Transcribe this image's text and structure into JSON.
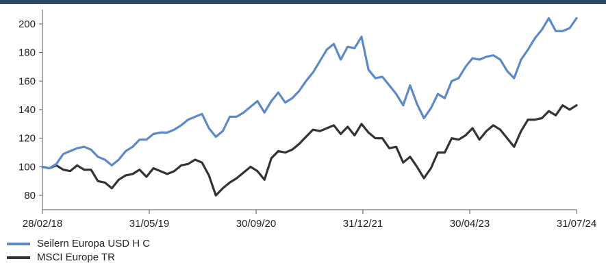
{
  "chart_data": {
    "type": "line",
    "x_ticks": [
      "28/02/18",
      "31/05/19",
      "30/09/20",
      "31/12/21",
      "30/04/23",
      "31/07/24"
    ],
    "y_ticks": [
      80,
      100,
      120,
      140,
      160,
      180,
      200
    ],
    "ylim": [
      70,
      210
    ],
    "grid": false,
    "legend_position": "bottom-left",
    "series": [
      {
        "name": "Seilern Europa USD H C",
        "color": "#5b8ac6",
        "values": [
          100,
          99,
          102,
          109,
          111,
          113,
          114,
          112,
          107,
          105,
          101,
          105,
          111,
          114,
          119,
          119,
          123,
          124,
          124,
          126,
          129,
          133,
          135,
          137,
          127,
          121,
          125,
          135,
          135,
          138,
          142,
          146,
          138,
          146,
          152,
          145,
          148,
          153,
          160,
          166,
          174,
          182,
          186,
          175,
          184,
          183,
          191,
          168,
          162,
          163,
          157,
          151,
          143,
          157,
          144,
          134,
          141,
          151,
          148,
          160,
          162,
          170,
          176,
          175,
          177,
          178,
          175,
          167,
          162,
          175,
          182,
          190,
          196,
          204,
          195,
          195,
          197,
          204
        ]
      },
      {
        "name": "MSCI Europe TR",
        "color": "#333333",
        "values": [
          100,
          99,
          101,
          98,
          97,
          101,
          98,
          98,
          90,
          89,
          85,
          91,
          94,
          95,
          98,
          93,
          99,
          97,
          95,
          97,
          101,
          102,
          105,
          103,
          94,
          80,
          85,
          89,
          92,
          96,
          100,
          97,
          91,
          106,
          111,
          110,
          112,
          116,
          121,
          126,
          125,
          127,
          129,
          123,
          128,
          122,
          130,
          124,
          120,
          120,
          113,
          114,
          103,
          107,
          100,
          92,
          99,
          110,
          110,
          120,
          119,
          122,
          127,
          119,
          125,
          129,
          126,
          120,
          114,
          125,
          133,
          133,
          134,
          139,
          136,
          143,
          140,
          143
        ]
      }
    ]
  }
}
